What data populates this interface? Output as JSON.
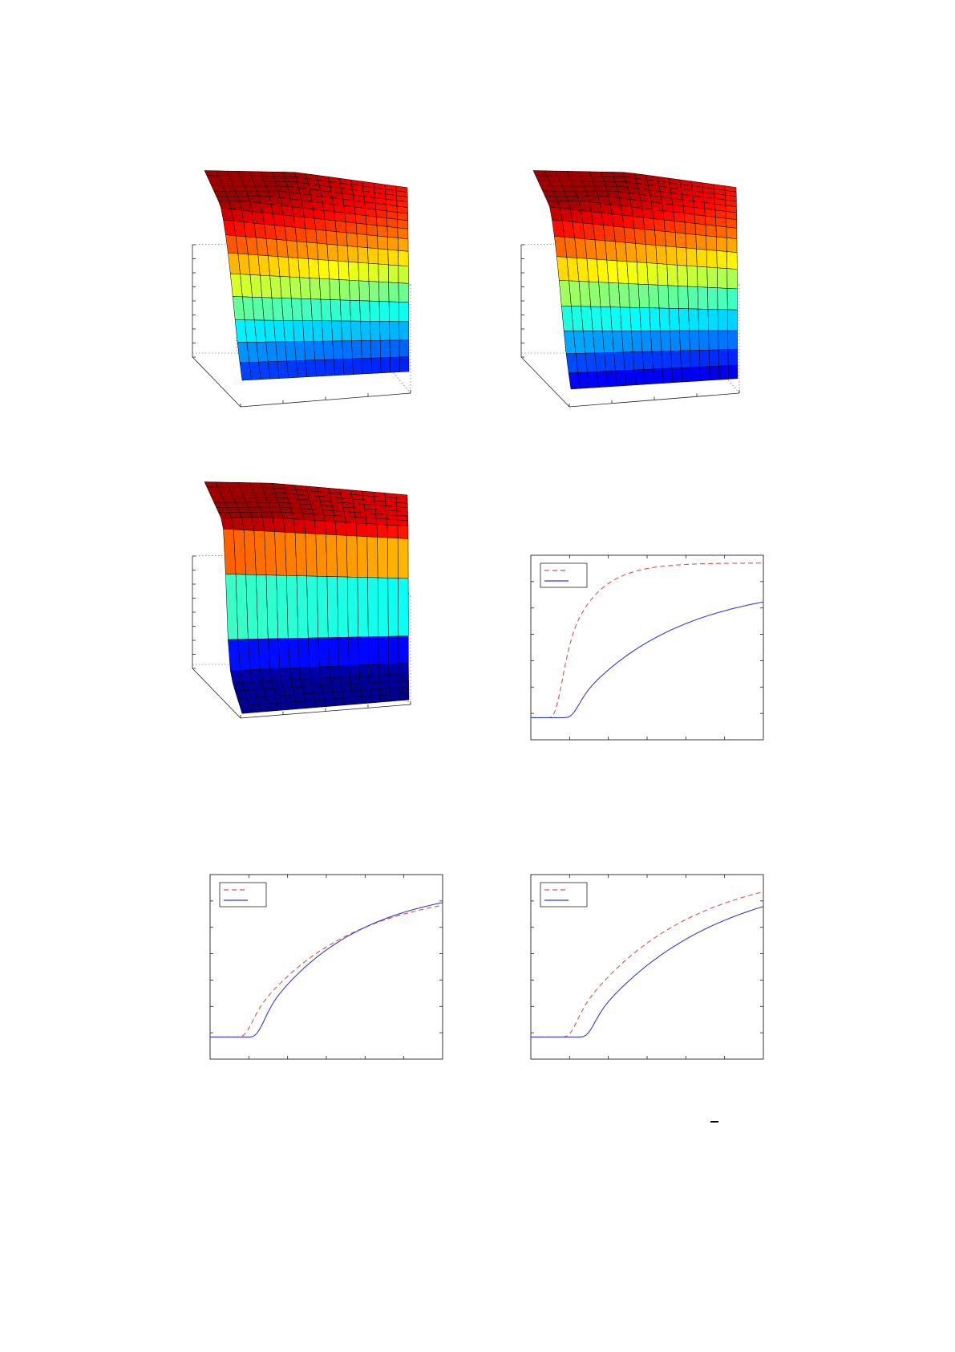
{
  "page": {
    "background": "#ffffff"
  },
  "colormap": "jet",
  "mesh_color": "#000000",
  "panels": [
    {
      "id": "surface-a",
      "chart_data": {
        "type": "surface",
        "surface_shape": "smooth",
        "grid": true,
        "xlabel": "",
        "ylabel": "",
        "zlabel": "",
        "title": ""
      }
    },
    {
      "id": "surface-b",
      "chart_data": {
        "type": "surface",
        "surface_shape": "smooth-steep",
        "grid": true,
        "xlabel": "",
        "ylabel": "",
        "zlabel": "",
        "title": ""
      }
    },
    {
      "id": "surface-c",
      "chart_data": {
        "type": "surface",
        "surface_shape": "cliff",
        "grid": true,
        "xlabel": "",
        "ylabel": "",
        "zlabel": "",
        "title": ""
      }
    },
    {
      "id": "line-a",
      "chart_data": {
        "type": "line",
        "grid": false,
        "legend_position": "top-left",
        "xlim": [
          0,
          6
        ],
        "ylim": [
          0,
          6
        ],
        "series": [
          {
            "color": "#d9534f",
            "style": "dashed",
            "onset": 0.45,
            "rate": 1.3,
            "limit": 5.75
          },
          {
            "color": "#3a3ad6",
            "style": "solid",
            "onset": 0.85,
            "rate": 0.38,
            "limit": 5.1
          }
        ]
      }
    },
    {
      "id": "line-b",
      "chart_data": {
        "type": "line",
        "grid": false,
        "legend_position": "top-left",
        "xlim": [
          0,
          6
        ],
        "ylim": [
          0,
          8
        ],
        "series": [
          {
            "color": "#d9534f",
            "style": "dashed",
            "onset": 0.7,
            "rate": 0.4,
            "limit": 7.45
          },
          {
            "color": "#3a3ad6",
            "style": "solid",
            "onset": 1.0,
            "rate": 0.42,
            "limit": 7.6
          }
        ]
      }
    },
    {
      "id": "line-c",
      "chart_data": {
        "type": "line",
        "grid": false,
        "legend_position": "top-left",
        "xlim": [
          0,
          6
        ],
        "ylim": [
          0,
          8
        ],
        "series": [
          {
            "color": "#d9534f",
            "style": "dashed",
            "onset": 0.8,
            "rate": 0.36,
            "limit": 8.4
          },
          {
            "color": "#3a3ad6",
            "style": "solid",
            "onset": 1.25,
            "rate": 0.32,
            "limit": 8.2
          }
        ]
      }
    }
  ]
}
